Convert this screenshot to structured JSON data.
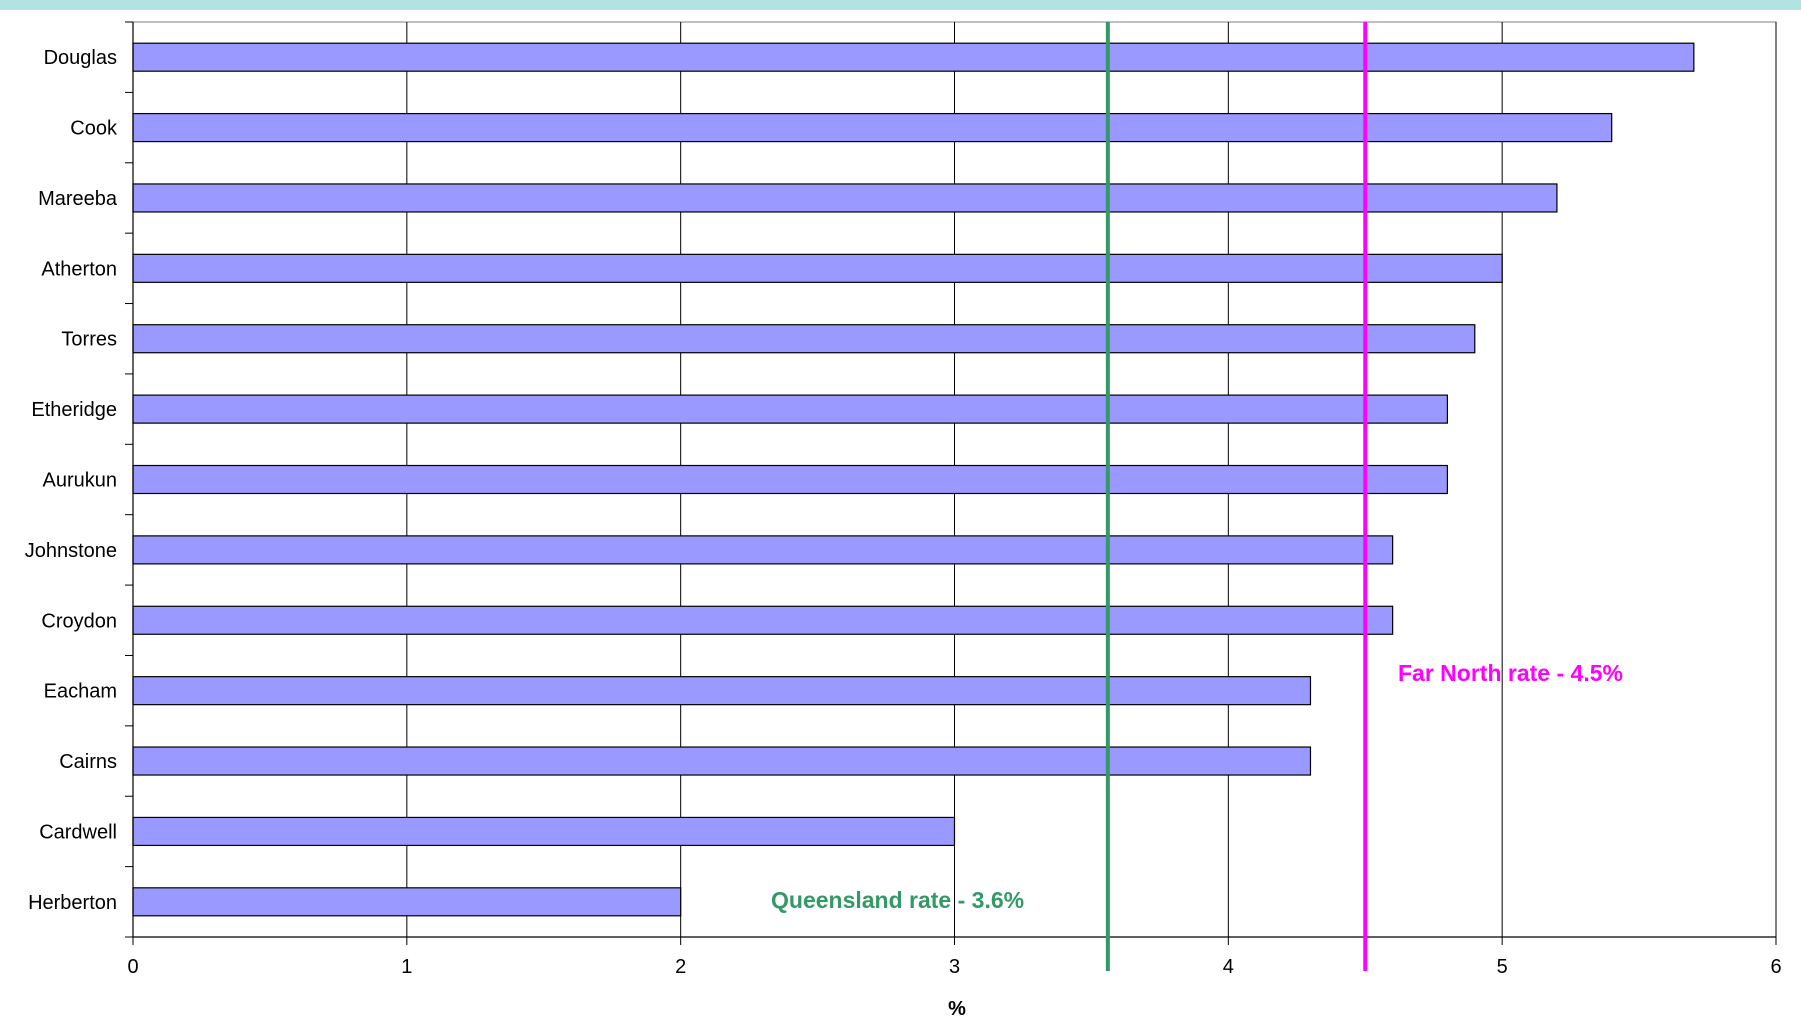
{
  "chart_data": {
    "type": "bar",
    "orientation": "horizontal",
    "categories": [
      "Douglas",
      "Cook",
      "Mareeba",
      "Atherton",
      "Torres",
      "Etheridge",
      "Aurukun",
      "Johnstone",
      "Croydon",
      "Eacham",
      "Cairns",
      "Cardwell",
      "Herberton"
    ],
    "values": [
      5.7,
      5.4,
      5.2,
      5.0,
      4.9,
      4.8,
      4.8,
      4.6,
      4.6,
      4.3,
      4.3,
      3.0,
      2.0
    ],
    "xlabel": "%",
    "xlim": [
      0,
      6
    ],
    "xticks": [
      0,
      1,
      2,
      3,
      4,
      5,
      6
    ],
    "grid": "vertical",
    "reference_lines": [
      {
        "value": 3.56,
        "label": "Queensland rate - 3.6%",
        "color": "#339966"
      },
      {
        "value": 4.5,
        "label": "Far North rate - 4.5%",
        "color": "#ff00ff"
      }
    ],
    "colors": {
      "bar_fill": "#9999ff",
      "bar_stroke": "#000000",
      "grid": "#000000",
      "band": "#b2e2e2"
    }
  }
}
